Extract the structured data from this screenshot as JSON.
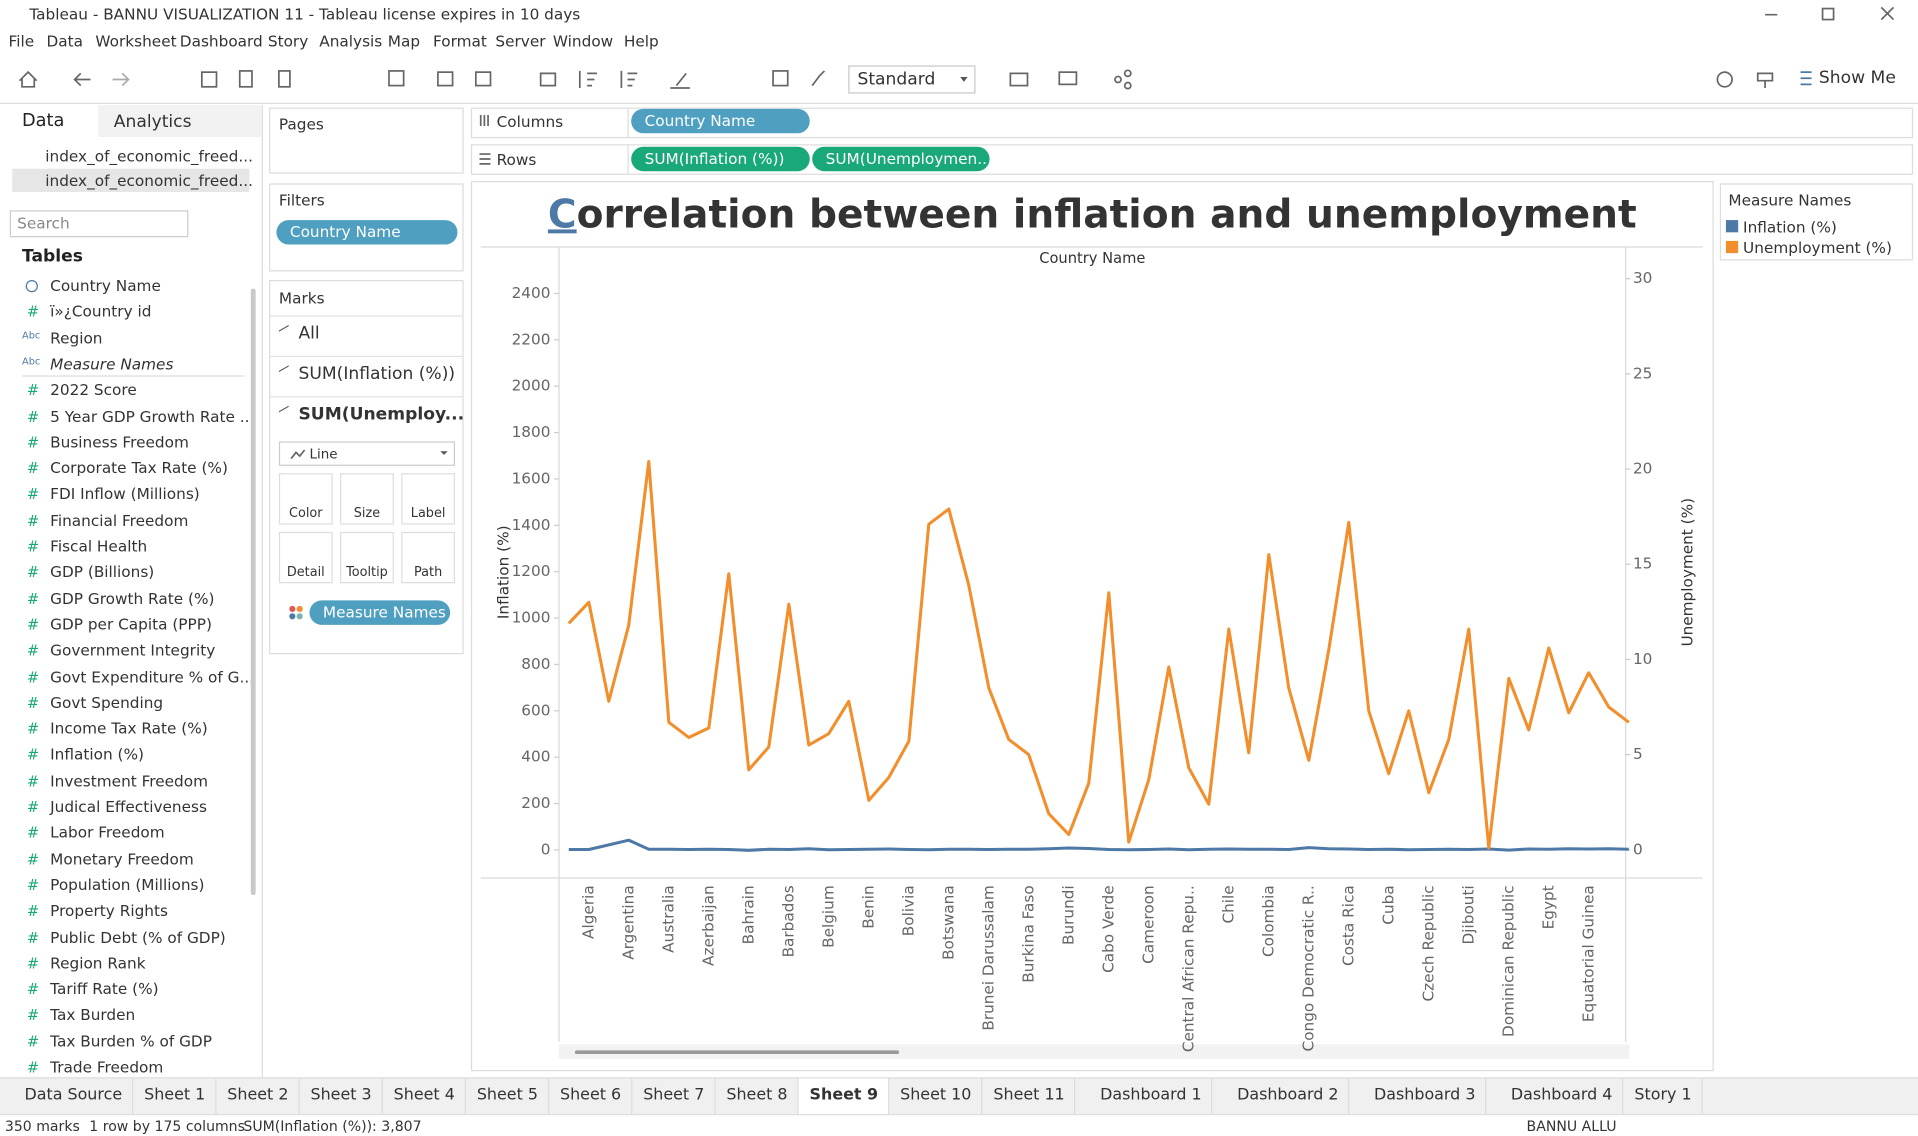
{
  "window": {
    "title": "Tableau - BANNU VISUALIZATION 11 - Tableau license expires in 10 days"
  },
  "menu": [
    "File",
    "Data",
    "Worksheet",
    "Dashboard",
    "Story",
    "Analysis",
    "Map",
    "Format",
    "Server",
    "Window",
    "Help"
  ],
  "toolbar": {
    "view_mode": "Standard",
    "show_me": "Show Me"
  },
  "data_pane": {
    "tabs": [
      "Data",
      "Analytics"
    ],
    "sources": [
      "index_of_economic_freed...",
      "index_of_economic_freed..."
    ],
    "search": "Search",
    "tables_heading": "Tables",
    "fields": [
      {
        "icon": "",
        "name": "Country Name"
      },
      {
        "icon": "#",
        "name": "ï»¿Country id"
      },
      {
        "icon": "Abc",
        "name": "Region"
      },
      {
        "icon": "Abc",
        "name": "Measure Names"
      },
      {
        "icon": "#",
        "name": "2022 Score"
      },
      {
        "icon": "#",
        "name": "5 Year GDP Growth Rate ..."
      },
      {
        "icon": "#",
        "name": "Business Freedom"
      },
      {
        "icon": "#",
        "name": "Corporate Tax Rate (%)"
      },
      {
        "icon": "#",
        "name": "FDI Inflow (Millions)"
      },
      {
        "icon": "#",
        "name": "Financial Freedom"
      },
      {
        "icon": "#",
        "name": "Fiscal Health"
      },
      {
        "icon": "#",
        "name": "GDP (Billions)"
      },
      {
        "icon": "#",
        "name": "GDP Growth Rate (%)"
      },
      {
        "icon": "#",
        "name": "GDP per Capita (PPP)"
      },
      {
        "icon": "#",
        "name": "Government Integrity"
      },
      {
        "icon": "#",
        "name": "Govt Expenditure % of G..."
      },
      {
        "icon": "#",
        "name": "Govt Spending"
      },
      {
        "icon": "#",
        "name": "Income Tax Rate (%)"
      },
      {
        "icon": "#",
        "name": "Inflation (%)"
      },
      {
        "icon": "#",
        "name": "Investment Freedom"
      },
      {
        "icon": "#",
        "name": "Judical Effectiveness"
      },
      {
        "icon": "#",
        "name": "Labor Freedom"
      },
      {
        "icon": "#",
        "name": "Monetary Freedom"
      },
      {
        "icon": "#",
        "name": "Population (Millions)"
      },
      {
        "icon": "#",
        "name": "Property Rights"
      },
      {
        "icon": "#",
        "name": "Public Debt (% of GDP)"
      },
      {
        "icon": "#",
        "name": "Region Rank"
      },
      {
        "icon": "#",
        "name": "Tariff Rate (%)"
      },
      {
        "icon": "#",
        "name": "Tax Burden"
      },
      {
        "icon": "#",
        "name": "Tax Burden % of GDP"
      },
      {
        "icon": "#",
        "name": "Trade Freedom"
      }
    ]
  },
  "shelves": {
    "pages": "Pages",
    "filters": {
      "label": "Filters",
      "pills": [
        "Country Name"
      ]
    },
    "columns": {
      "label": "Columns",
      "pills": [
        "Country Name"
      ]
    },
    "rows": {
      "label": "Rows",
      "pills": [
        "SUM(Inflation (%))",
        "SUM(Unemploymen.."
      ]
    }
  },
  "marks": {
    "label": "Marks",
    "cards": [
      "All",
      "SUM(Inflation (%))",
      "SUM(Unemploy..."
    ],
    "mark_type": "Line",
    "buttons": [
      "Color",
      "Size",
      "Label",
      "Detail",
      "Tooltip",
      "Path"
    ],
    "color_pill": "Measure Names"
  },
  "legend": {
    "title": "Measure Names",
    "items": [
      "Inflation (%)",
      "Unemployment (%)"
    ]
  },
  "chart_data": {
    "type": "line",
    "title": "Correlation between inflation and unemployment",
    "column_header": "Country Name",
    "y_label": "Inflation (%)",
    "y2_label": "Unemployment (%)",
    "categories": [
      null,
      "Algeria",
      null,
      "Argentina",
      null,
      "Australia",
      null,
      "Azerbaijan",
      null,
      "Bahrain",
      null,
      "Barbados",
      null,
      "Belgium",
      null,
      "Benin",
      null,
      "Bolivia",
      null,
      "Botswana",
      null,
      "Brunei Darussalam",
      null,
      "Burkina Faso",
      null,
      "Burundi",
      null,
      "Cabo Verde",
      null,
      "Cameroon",
      null,
      "Central African Repu..",
      null,
      "Chile",
      null,
      "Colombia",
      null,
      "Congo Democratic R..",
      null,
      "Costa Rica",
      null,
      "Cuba",
      null,
      "Czech Republic",
      null,
      "Djibouti",
      null,
      "Dominican Republic",
      null,
      "Egypt",
      null,
      "Equatorial Guinea",
      null,
      null
    ],
    "series": [
      {
        "name": "Inflation (%)",
        "color": "#4e79a7",
        "values": [
          2,
          2,
          22,
          42,
          3,
          3,
          2,
          3,
          2,
          -2,
          3,
          2,
          5,
          1,
          2,
          3,
          4,
          2,
          1,
          3,
          3,
          2,
          3,
          3,
          5,
          8,
          6,
          2,
          1,
          2,
          4,
          1,
          3,
          4,
          3,
          3,
          2,
          10,
          5,
          4,
          2,
          3,
          1,
          2,
          3,
          2,
          4,
          -1,
          4,
          3,
          5,
          4,
          5,
          3
        ]
      },
      {
        "name": "Unemployment (%)",
        "color": "#f28e2b",
        "axis": "y2",
        "values": [
          11.9,
          13.0,
          7.8,
          11.8,
          20.4,
          6.7,
          5.9,
          6.4,
          14.5,
          4.2,
          5.4,
          12.9,
          5.5,
          6.1,
          7.8,
          2.6,
          3.8,
          5.7,
          17.1,
          17.9,
          13.9,
          8.5,
          5.8,
          5.0,
          1.9,
          0.8,
          3.5,
          13.5,
          0.4,
          3.7,
          9.6,
          4.3,
          2.4,
          11.6,
          5.1,
          15.5,
          8.5,
          4.7,
          10.5,
          17.2,
          7.3,
          4.0,
          7.3,
          3.0,
          5.8,
          11.6,
          0.1,
          9.0,
          6.3,
          10.6,
          7.2,
          9.3,
          7.5,
          6.7
        ]
      }
    ],
    "ylim": [
      -121,
      2595
    ],
    "yticks": [
      0,
      200,
      400,
      600,
      800,
      1000,
      1200,
      1400,
      1600,
      1800,
      2000,
      2200,
      2400
    ],
    "y2lim": [
      -1.48,
      31.6
    ],
    "y2ticks": [
      0,
      5,
      10,
      15,
      20,
      25,
      30
    ]
  },
  "tabs": [
    "Data Source",
    "Sheet 1",
    "Sheet 2",
    "Sheet 3",
    "Sheet 4",
    "Sheet 5",
    "Sheet 6",
    "Sheet 7",
    "Sheet 8",
    "Sheet 9",
    "Sheet 10",
    "Sheet 11",
    "Dashboard 1",
    "Dashboard 2",
    "Dashboard 3",
    "Dashboard 4",
    "Story 1"
  ],
  "status": {
    "marks": "350 marks",
    "layout": "1 row by 175 columns",
    "sum": "SUM(Inflation (%)): 3,807",
    "user": "BANNU ALLU"
  }
}
